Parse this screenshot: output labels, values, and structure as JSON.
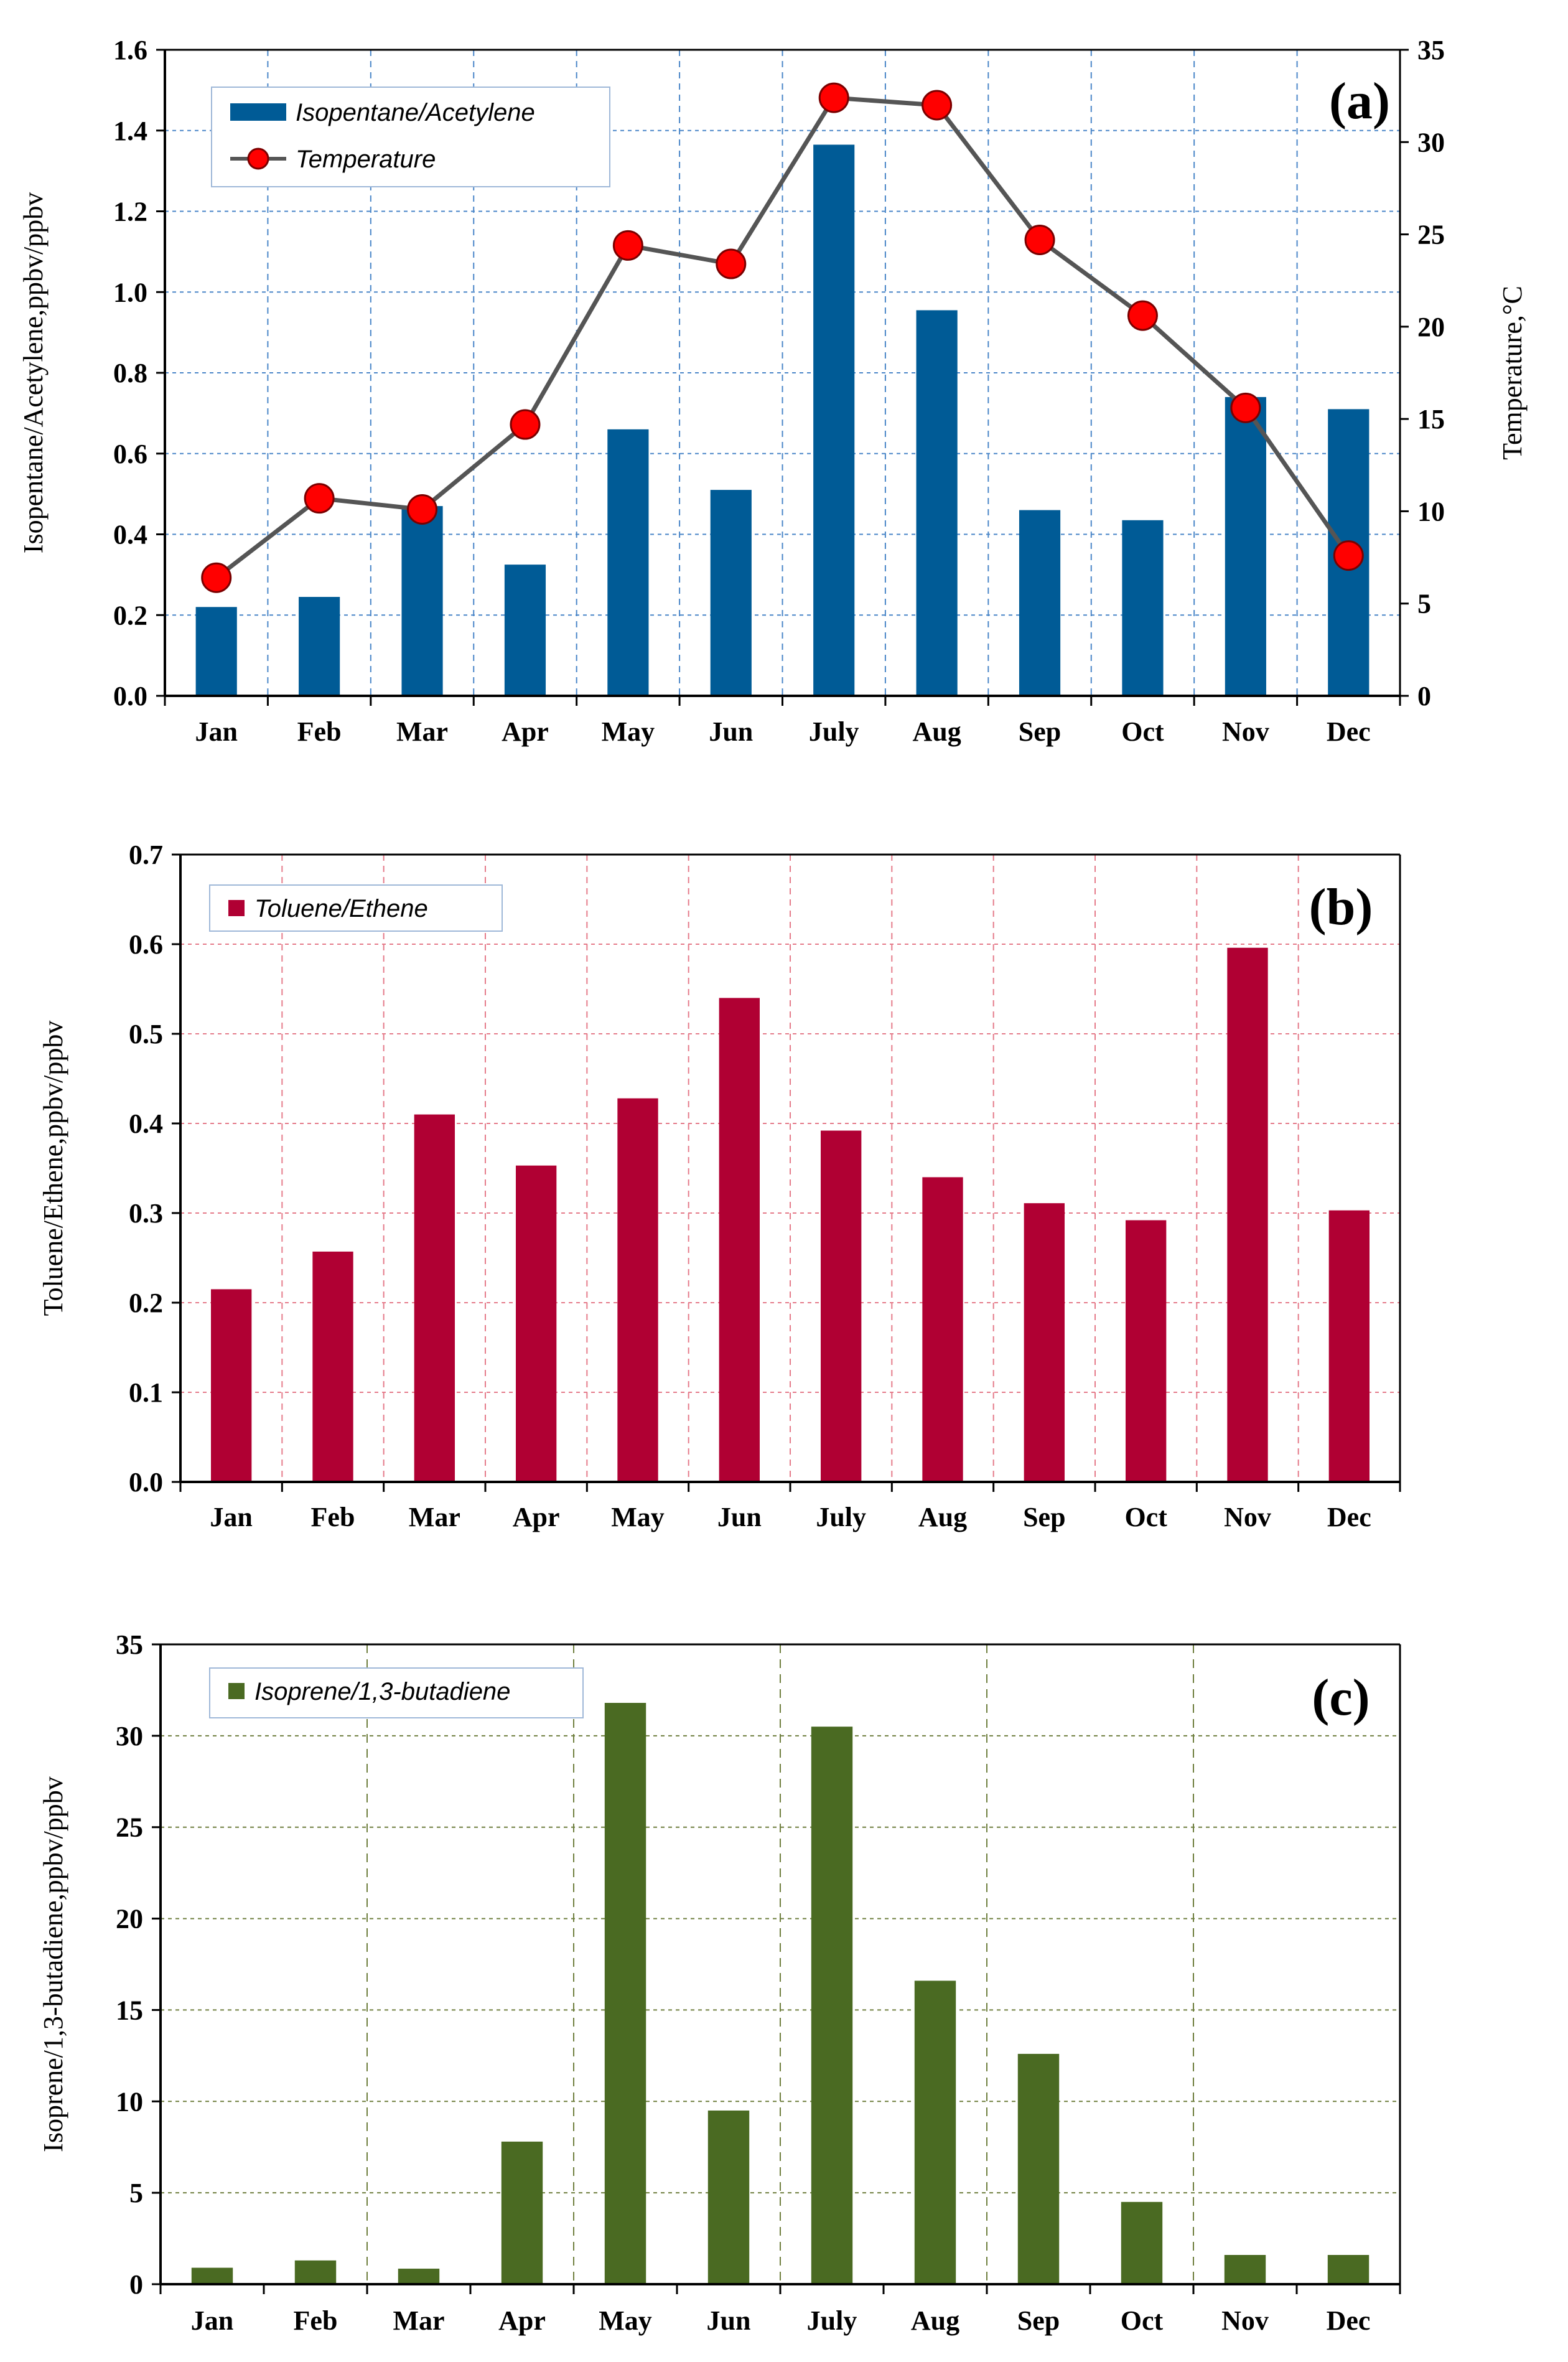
{
  "chart_data": [
    {
      "type": "bar",
      "panel_label": "(a)",
      "categories": [
        "Jan",
        "Feb",
        "Mar",
        "Apr",
        "May",
        "Jun",
        "July",
        "Aug",
        "Sep",
        "Oct",
        "Nov",
        "Dec"
      ],
      "series": [
        {
          "name": "Isopentane/Acetylene",
          "type": "bar",
          "color": "#005b96",
          "axis": "left",
          "values": [
            0.22,
            0.245,
            0.47,
            0.325,
            0.66,
            0.51,
            1.365,
            0.955,
            0.46,
            0.435,
            0.74,
            0.71
          ]
        },
        {
          "name": "Temperature",
          "type": "line",
          "color": "#ff0000",
          "line_color": "#555555",
          "axis": "right",
          "values": [
            6.4,
            10.7,
            10.1,
            14.7,
            24.4,
            23.4,
            32.4,
            32.0,
            24.7,
            20.6,
            15.6,
            7.6
          ]
        }
      ],
      "ylabel": "Isopentane/Acetylene,ppbv/ppbv",
      "ylabel_right": "Temperature,°C",
      "ylim": [
        0,
        1.6
      ],
      "yticks": [
        "0.0",
        "0.2",
        "0.4",
        "0.6",
        "0.8",
        "1.0",
        "1.2",
        "1.4",
        "1.6"
      ],
      "ylim_right": [
        0,
        35
      ],
      "yticks_right": [
        "0",
        "5",
        "10",
        "15",
        "20",
        "25",
        "30",
        "35"
      ],
      "grid": true,
      "grid_color": "#4a86c8",
      "legend": "top-left"
    },
    {
      "type": "bar",
      "panel_label": "(b)",
      "categories": [
        "Jan",
        "Feb",
        "Mar",
        "Apr",
        "May",
        "Jun",
        "July",
        "Aug",
        "Sep",
        "Oct",
        "Nov",
        "Dec"
      ],
      "series": [
        {
          "name": "Toluene/Ethene",
          "color": "#b00033",
          "values": [
            0.215,
            0.257,
            0.41,
            0.353,
            0.428,
            0.54,
            0.392,
            0.34,
            0.311,
            0.292,
            0.596,
            0.303
          ]
        }
      ],
      "ylabel": "Toluene/Ethene,ppbv/ppbv",
      "ylim": [
        0,
        0.7
      ],
      "yticks": [
        "0.0",
        "0.1",
        "0.2",
        "0.3",
        "0.4",
        "0.5",
        "0.6",
        "0.7"
      ],
      "grid": true,
      "grid_color": "#e57b8a",
      "legend": "top-left"
    },
    {
      "type": "bar",
      "panel_label": "(c)",
      "categories": [
        "Jan",
        "Feb",
        "Mar",
        "Apr",
        "May",
        "Jun",
        "July",
        "Aug",
        "Sep",
        "Oct",
        "Nov",
        "Dec"
      ],
      "series": [
        {
          "name": "Isoprene/1,3-butadiene",
          "color": "#4a6a22",
          "values": [
            0.9,
            1.3,
            0.85,
            7.8,
            31.8,
            9.5,
            30.5,
            16.6,
            12.6,
            4.5,
            1.6,
            1.6
          ]
        }
      ],
      "ylabel": "Isoprene/1,3-butadiene,ppbv/ppbv",
      "ylim": [
        0,
        35
      ],
      "yticks": [
        "0",
        "5",
        "10",
        "15",
        "20",
        "25",
        "30",
        "35"
      ],
      "grid": true,
      "grid_color": "#6f7f3f",
      "legend": "top-left"
    }
  ]
}
